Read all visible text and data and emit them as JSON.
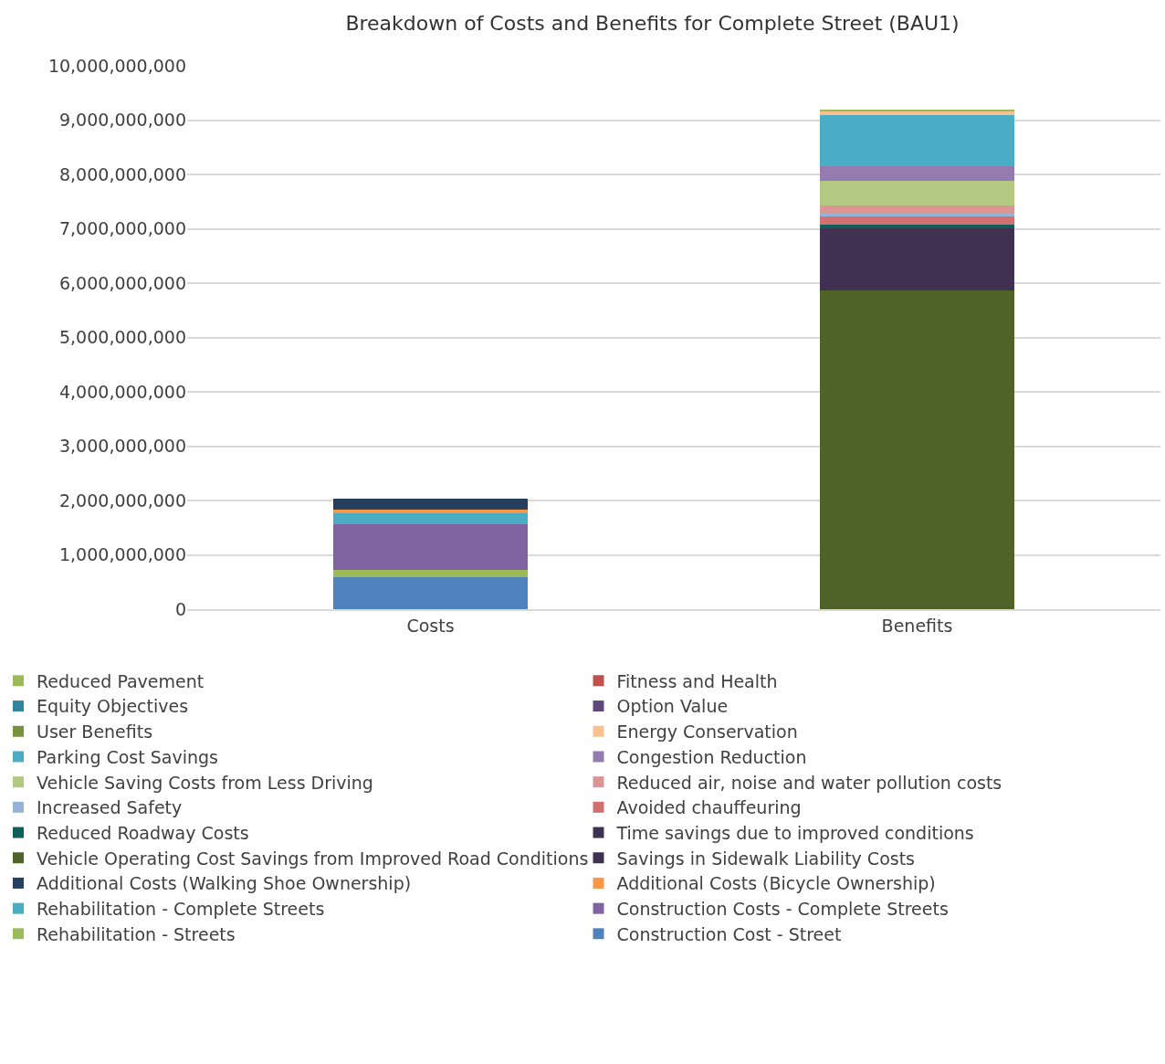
{
  "chart_data": {
    "type": "bar",
    "stacked": true,
    "title": "Breakdown of Costs and Benefits for Complete Street (BAU1)",
    "categories": [
      "Costs",
      "Benefits"
    ],
    "ylim": [
      0,
      10000000000
    ],
    "yticks": [
      0,
      {
        "value": 1000000000,
        "label": "1,000,000,000"
      },
      {
        "value": 2000000000,
        "label": "2,000,000,000"
      },
      {
        "value": 3000000000,
        "label": "3,000,000,000"
      },
      {
        "value": 4000000000,
        "label": "4,000,000,000"
      },
      {
        "value": 5000000000,
        "label": "5,000,000,000"
      },
      {
        "value": 6000000000,
        "label": "6,000,000,000"
      },
      {
        "value": 7000000000,
        "label": "7,000,000,000"
      },
      {
        "value": 8000000000,
        "label": "8,000,000,000"
      },
      {
        "value": 9000000000,
        "label": "9,000,000,000"
      },
      {
        "value": 10000000000,
        "label": "10,000,000,000"
      }
    ],
    "grid": "y",
    "legend": "bottom",
    "series": [
      {
        "name": "Construction Cost - Street",
        "color": "#4f81bd",
        "values": [
          580000000,
          null
        ]
      },
      {
        "name": "Rehabilitation - Streets",
        "color": "#9bbb59",
        "values": [
          150000000,
          null
        ]
      },
      {
        "name": "Construction Costs - Complete Streets",
        "color": "#8064a2",
        "values": [
          830000000,
          null
        ]
      },
      {
        "name": "Rehabilitation - Complete Streets",
        "color": "#4bacc6",
        "values": [
          210000000,
          null
        ]
      },
      {
        "name": "Additional Costs (Bicycle Ownership)",
        "color": "#f79646",
        "values": [
          60000000,
          null
        ]
      },
      {
        "name": "Additional Costs (Walking Shoe Ownership)",
        "color": "#243f60",
        "values": [
          200000000,
          null
        ]
      },
      {
        "name": "Savings in Sidewalk Liability Costs",
        "color": "#3f3151",
        "values": [
          null,
          0
        ]
      },
      {
        "name": "Vehicle Operating Cost Savings from Improved Road Conditions",
        "color": "#4f6228",
        "values": [
          null,
          5870000000
        ]
      },
      {
        "name": "Time savings due to improved conditions",
        "color": "#403152",
        "values": [
          null,
          1140000000
        ]
      },
      {
        "name": "Reduced Roadway Costs",
        "color": "#0e5f5a",
        "values": [
          null,
          70000000
        ]
      },
      {
        "name": "Avoided chauffeuring",
        "color": "#d07070",
        "values": [
          null,
          140000000
        ]
      },
      {
        "name": "Increased Safety",
        "color": "#95b3d7",
        "values": [
          null,
          70000000
        ]
      },
      {
        "name": "Reduced air, noise and water pollution costs",
        "color": "#d99694",
        "values": [
          null,
          140000000
        ]
      },
      {
        "name": "Vehicle Saving Costs from Less Driving",
        "color": "#b3c982",
        "values": [
          null,
          450000000
        ]
      },
      {
        "name": "Congestion Reduction",
        "color": "#967bb0",
        "values": [
          null,
          270000000
        ]
      },
      {
        "name": "Parking Cost Savings",
        "color": "#4bacc6",
        "values": [
          null,
          940000000
        ]
      },
      {
        "name": "Energy Conservation",
        "color": "#fac090",
        "values": [
          null,
          70000000
        ]
      },
      {
        "name": "User Benefits",
        "color": "#77933c",
        "values": [
          null,
          0
        ]
      },
      {
        "name": "Option Value",
        "color": "#5f497a",
        "values": [
          null,
          0
        ]
      },
      {
        "name": "Equity Objectives",
        "color": "#31859c",
        "values": [
          null,
          0
        ]
      },
      {
        "name": "Fitness and Health",
        "color": "#c0504d",
        "values": [
          null,
          0
        ]
      },
      {
        "name": "Reduced Pavement",
        "color": "#9bbb59",
        "values": [
          null,
          30000000
        ]
      }
    ]
  }
}
